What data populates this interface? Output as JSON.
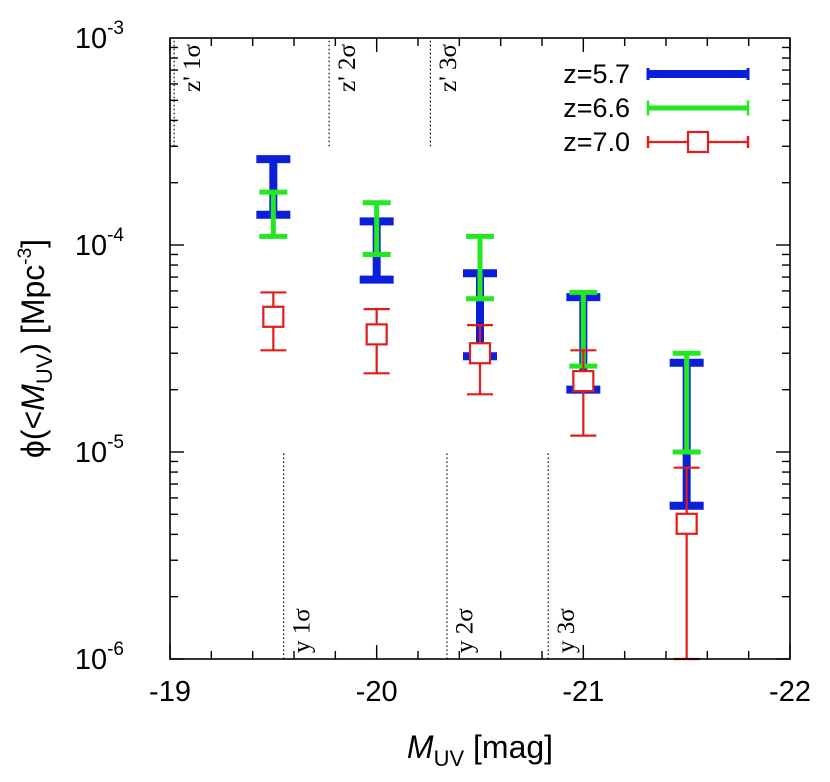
{
  "chart_data": {
    "type": "scatter",
    "title": "",
    "xlabel": {
      "italic": "M",
      "sub": "UV",
      "rest": " [mag]"
    },
    "ylabel": {
      "prefix": "ϕ(<",
      "italic": "M",
      "sub": "UV",
      "mid": ") [Mpc",
      "sup": "-3",
      "suffix": "]"
    },
    "xlim": [
      -19,
      -22
    ],
    "ylim": [
      1e-06,
      0.001
    ],
    "yscale": "log",
    "x_ticks": [
      -19,
      -20,
      -21,
      -22
    ],
    "x_tick_labels": [
      "-19",
      "-20",
      "-21",
      "-22"
    ],
    "y_ticks": [
      {
        "base": "10",
        "exp": "-3",
        "value": 0.001
      },
      {
        "base": "10",
        "exp": "-4",
        "value": 0.0001
      },
      {
        "base": "10",
        "exp": "-5",
        "value": 1e-05
      },
      {
        "base": "10",
        "exp": "-6",
        "value": 1e-06
      }
    ],
    "series": [
      {
        "name": "z=5.7",
        "color": "#0a1fd9",
        "marker": "none",
        "points": [
          {
            "x": -19.5,
            "low": 0.00014,
            "high": 0.00026
          },
          {
            "x": -20.0,
            "low": 6.8e-05,
            "high": 0.00013
          },
          {
            "x": -20.5,
            "low": 2.9e-05,
            "high": 7.3e-05
          },
          {
            "x": -21.0,
            "low": 2e-05,
            "high": 5.6e-05
          },
          {
            "x": -21.5,
            "low": 5.5e-06,
            "high": 2.7e-05
          }
        ]
      },
      {
        "name": "z=6.6",
        "color": "#22e822",
        "marker": "none",
        "points": [
          {
            "x": -19.5,
            "low": 0.00011,
            "high": 0.00018
          },
          {
            "x": -20.0,
            "low": 9e-05,
            "high": 0.00016
          },
          {
            "x": -20.5,
            "low": 5.5e-05,
            "high": 0.00011
          },
          {
            "x": -21.0,
            "low": 2.6e-05,
            "high": 5.9e-05
          },
          {
            "x": -21.5,
            "low": 1e-05,
            "high": 3e-05
          }
        ]
      },
      {
        "name": "z=7.0",
        "color": "#e21b1b",
        "marker": "open-square",
        "points": [
          {
            "x": -19.5,
            "y": 4.5e-05,
            "low": 3.1e-05,
            "high": 5.9e-05
          },
          {
            "x": -20.0,
            "y": 3.7e-05,
            "low": 2.4e-05,
            "high": 4.9e-05
          },
          {
            "x": -20.5,
            "y": 3e-05,
            "low": 1.9e-05,
            "high": 4.1e-05
          },
          {
            "x": -21.0,
            "y": 2.2e-05,
            "low": 1.2e-05,
            "high": 3.1e-05
          },
          {
            "x": -21.5,
            "y": 4.5e-06,
            "low": 1e-06,
            "high": 8.4e-06
          }
        ]
      }
    ],
    "annotations": [
      {
        "text": "z' 1σ",
        "x": -19.02,
        "from_y": 0.0003,
        "to_y": 0.001,
        "side": "top"
      },
      {
        "text": "z' 2σ",
        "x": -19.77,
        "from_y": 0.0003,
        "to_y": 0.001,
        "side": "top"
      },
      {
        "text": "z' 3σ",
        "x": -20.26,
        "from_y": 0.0003,
        "to_y": 0.001,
        "side": "top"
      },
      {
        "text": "y 1σ",
        "x": -19.55,
        "from_y": 1e-06,
        "to_y": 1e-05,
        "side": "bottom"
      },
      {
        "text": "y 2σ",
        "x": -20.34,
        "from_y": 1e-06,
        "to_y": 1e-05,
        "side": "bottom"
      },
      {
        "text": "y 3σ",
        "x": -20.83,
        "from_y": 1e-06,
        "to_y": 1e-05,
        "side": "bottom"
      }
    ],
    "legend": {
      "position": "top-right"
    },
    "grid": false
  }
}
